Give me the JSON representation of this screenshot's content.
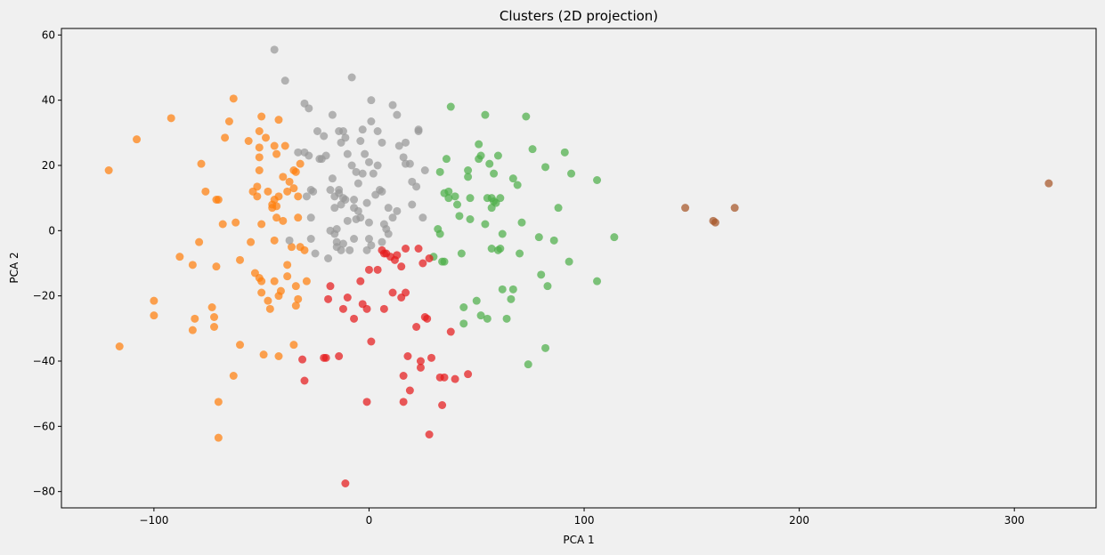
{
  "chart_data": {
    "type": "scatter",
    "title": "Clusters (2D projection)",
    "xlabel": "PCA 1",
    "ylabel": "PCA 2",
    "xlim": [
      -143,
      338
    ],
    "ylim": [
      -85,
      62
    ],
    "xticks": [
      -100,
      0,
      100,
      200,
      300
    ],
    "yticks": [
      -80,
      -60,
      -40,
      -20,
      0,
      20,
      40,
      60
    ],
    "grid": false,
    "legend": "none",
    "background": "#f0f0f0",
    "series": [
      {
        "color": "#ff7f0e",
        "points": [
          [
            -121,
            18.5
          ],
          [
            -108,
            28
          ],
          [
            -92,
            34.5
          ],
          [
            -116,
            -35.5
          ],
          [
            -100,
            -21.5
          ],
          [
            -100,
            -26
          ],
          [
            -88,
            -8
          ],
          [
            -82,
            -10.5
          ],
          [
            -81,
            -27
          ],
          [
            -82,
            -30.5
          ],
          [
            -79,
            -3.5
          ],
          [
            -78,
            20.5
          ],
          [
            -76,
            12
          ],
          [
            -73,
            -23.5
          ],
          [
            -72,
            -26.5
          ],
          [
            -72,
            -29.5
          ],
          [
            -71,
            9.5
          ],
          [
            -70,
            9.5
          ],
          [
            -71,
            -11
          ],
          [
            -70,
            -52.5
          ],
          [
            -70,
            -63.5
          ],
          [
            -68,
            2
          ],
          [
            -67,
            28.5
          ],
          [
            -65,
            33.5
          ],
          [
            -63,
            40.5
          ],
          [
            -62,
            2.5
          ],
          [
            -63,
            -44.5
          ],
          [
            -60,
            -9
          ],
          [
            -60,
            -35
          ],
          [
            -56,
            27.5
          ],
          [
            -55,
            -3.5
          ],
          [
            -54,
            12
          ],
          [
            -53,
            -13
          ],
          [
            -52,
            10.5
          ],
          [
            -52,
            13.5
          ],
          [
            -51,
            30.5
          ],
          [
            -51,
            25.5
          ],
          [
            -50,
            35
          ],
          [
            -51,
            22.5
          ],
          [
            -51,
            18.5
          ],
          [
            -51,
            -14.5
          ],
          [
            -50,
            2
          ],
          [
            -50,
            -15.5
          ],
          [
            -50,
            -19
          ],
          [
            -49,
            -38
          ],
          [
            -48,
            28.5
          ],
          [
            -47,
            12
          ],
          [
            -47,
            -21.5
          ],
          [
            -46,
            -24
          ],
          [
            -45,
            7
          ],
          [
            -45,
            8
          ],
          [
            -44,
            26
          ],
          [
            -43,
            23.5
          ],
          [
            -44,
            9.5
          ],
          [
            -44,
            -3
          ],
          [
            -44,
            -15.5
          ],
          [
            -43,
            4
          ],
          [
            -43,
            7.5
          ],
          [
            -42,
            10.5
          ],
          [
            -42,
            34
          ],
          [
            -42,
            -20
          ],
          [
            -42,
            -38.5
          ],
          [
            -41,
            -18.5
          ],
          [
            -40,
            3
          ],
          [
            -40,
            16.5
          ],
          [
            -39,
            26
          ],
          [
            -38,
            -10.5
          ],
          [
            -38,
            -14
          ],
          [
            -38,
            12
          ],
          [
            -37,
            15
          ],
          [
            -36,
            -5
          ],
          [
            -35,
            18.5
          ],
          [
            -35,
            13
          ],
          [
            -35,
            -35
          ],
          [
            -34,
            -17
          ],
          [
            -34,
            -23
          ],
          [
            -34,
            18
          ],
          [
            -33,
            10.5
          ],
          [
            -33,
            -21
          ],
          [
            -33,
            4
          ],
          [
            -32,
            20.5
          ],
          [
            -32,
            -5
          ],
          [
            -30,
            -6
          ],
          [
            -29,
            -15.5
          ]
        ]
      },
      {
        "color": "#999999",
        "points": [
          [
            -44,
            55.5
          ],
          [
            -39,
            46
          ],
          [
            -30,
            39
          ],
          [
            -28,
            37.5
          ],
          [
            -24,
            30.5
          ],
          [
            -23,
            22
          ],
          [
            -22,
            22
          ],
          [
            -21,
            29
          ],
          [
            -20,
            23
          ],
          [
            -19,
            -8.5
          ],
          [
            -18,
            12.5
          ],
          [
            -18,
            0
          ],
          [
            -17,
            16
          ],
          [
            -17,
            35.5
          ],
          [
            -16,
            10.5
          ],
          [
            -16,
            -1
          ],
          [
            -16,
            7
          ],
          [
            -15,
            -3.5
          ],
          [
            -15,
            -5
          ],
          [
            -15,
            0.5
          ],
          [
            -14,
            12.5
          ],
          [
            -14,
            11.5
          ],
          [
            -14,
            30.5
          ],
          [
            -13,
            27
          ],
          [
            -13,
            8
          ],
          [
            -13,
            -6
          ],
          [
            -12,
            10
          ],
          [
            -12,
            30.5
          ],
          [
            -12,
            -4
          ],
          [
            -11,
            9.5
          ],
          [
            -11,
            28.5
          ],
          [
            -10,
            23.5
          ],
          [
            -10,
            3
          ],
          [
            -9,
            -6
          ],
          [
            -8,
            47
          ],
          [
            -8,
            20
          ],
          [
            -7,
            7
          ],
          [
            -7,
            9.5
          ],
          [
            -7,
            -2.5
          ],
          [
            -6,
            3.5
          ],
          [
            -6,
            18
          ],
          [
            -5,
            6
          ],
          [
            -5,
            14.5
          ],
          [
            -4,
            4
          ],
          [
            -4,
            27.5
          ],
          [
            -3,
            17.5
          ],
          [
            -3,
            31
          ],
          [
            -2,
            23.5
          ],
          [
            -1,
            -6
          ],
          [
            0,
            2.5
          ],
          [
            -1,
            8.5
          ],
          [
            0,
            21
          ],
          [
            0,
            -2.5
          ],
          [
            1,
            33.5
          ],
          [
            1,
            40
          ],
          [
            1,
            -4.5
          ],
          [
            2,
            17.5
          ],
          [
            3,
            11
          ],
          [
            4,
            30.5
          ],
          [
            4,
            20
          ],
          [
            5,
            12.5
          ],
          [
            6,
            -3.5
          ],
          [
            6,
            12
          ],
          [
            6,
            27
          ],
          [
            7,
            2
          ],
          [
            8,
            0.5
          ],
          [
            9,
            7
          ],
          [
            9,
            -1
          ],
          [
            11,
            38.5
          ],
          [
            11,
            4
          ],
          [
            13,
            35.5
          ],
          [
            13,
            6
          ],
          [
            14,
            26
          ],
          [
            16,
            22.5
          ],
          [
            17,
            20.5
          ],
          [
            17,
            27
          ],
          [
            19,
            20.5
          ],
          [
            20,
            8
          ],
          [
            20,
            15
          ],
          [
            22,
            13.5
          ],
          [
            23,
            31
          ],
          [
            23,
            30.5
          ],
          [
            25,
            4
          ],
          [
            26,
            18.5
          ],
          [
            -37,
            -3
          ],
          [
            -30,
            24
          ],
          [
            -28,
            23
          ],
          [
            -27,
            -2.5
          ],
          [
            -26,
            12
          ],
          [
            -25,
            -7
          ],
          [
            -27,
            4
          ],
          [
            -27,
            12.5
          ],
          [
            -29,
            10.5
          ],
          [
            -33,
            24
          ]
        ]
      },
      {
        "color": "#4daf4a",
        "points": [
          [
            38,
            38
          ],
          [
            30,
            -8
          ],
          [
            32,
            0.5
          ],
          [
            33,
            -1
          ],
          [
            33,
            18
          ],
          [
            35,
            11.5
          ],
          [
            36,
            22
          ],
          [
            37,
            10
          ],
          [
            37,
            12
          ],
          [
            40,
            10.5
          ],
          [
            41,
            8
          ],
          [
            42,
            4.5
          ],
          [
            43,
            -7
          ],
          [
            44,
            -23.5
          ],
          [
            44,
            -28.5
          ],
          [
            46,
            18.5
          ],
          [
            46,
            16.5
          ],
          [
            47,
            10
          ],
          [
            47,
            3.5
          ],
          [
            50,
            -21.5
          ],
          [
            51,
            26.5
          ],
          [
            51,
            22
          ],
          [
            52,
            23
          ],
          [
            52,
            -26
          ],
          [
            54,
            2
          ],
          [
            54,
            35.5
          ],
          [
            55,
            10
          ],
          [
            55,
            -27
          ],
          [
            56,
            20.5
          ],
          [
            57,
            -5.5
          ],
          [
            57,
            7
          ],
          [
            57,
            10
          ],
          [
            58,
            17.5
          ],
          [
            58,
            9
          ],
          [
            59,
            8.5
          ],
          [
            60,
            23
          ],
          [
            60,
            -6
          ],
          [
            61,
            10
          ],
          [
            61,
            -5.5
          ],
          [
            62,
            -1
          ],
          [
            62,
            -18
          ],
          [
            64,
            -27
          ],
          [
            66,
            -21
          ],
          [
            67,
            -18
          ],
          [
            67,
            16
          ],
          [
            69,
            14
          ],
          [
            70,
            -7
          ],
          [
            71,
            2.5
          ],
          [
            73,
            35
          ],
          [
            74,
            -41
          ],
          [
            76,
            25
          ],
          [
            79,
            -2
          ],
          [
            80,
            -13.5
          ],
          [
            82,
            -36
          ],
          [
            82,
            19.5
          ],
          [
            83,
            -17
          ],
          [
            86,
            -3
          ],
          [
            88,
            7
          ],
          [
            91,
            24
          ],
          [
            93,
            -9.5
          ],
          [
            94,
            17.5
          ],
          [
            106,
            15.5
          ],
          [
            106,
            -15.5
          ],
          [
            114,
            -2
          ],
          [
            35,
            -9.5
          ],
          [
            34,
            -9.5
          ]
        ]
      },
      {
        "color": "#e41a1c",
        "points": [
          [
            -11,
            -77.5
          ],
          [
            -31,
            -39.5
          ],
          [
            -30,
            -46
          ],
          [
            -21,
            -39
          ],
          [
            -20,
            -39
          ],
          [
            -19,
            -21
          ],
          [
            -18,
            -17
          ],
          [
            -14,
            -38.5
          ],
          [
            -12,
            -24
          ],
          [
            -10,
            -20.5
          ],
          [
            -7,
            -27
          ],
          [
            -4,
            -15.5
          ],
          [
            -3,
            -22.5
          ],
          [
            -1,
            -52.5
          ],
          [
            -1,
            -24
          ],
          [
            0,
            -12
          ],
          [
            1,
            -34
          ],
          [
            4,
            -12
          ],
          [
            6,
            -6
          ],
          [
            7,
            -7
          ],
          [
            7,
            -24
          ],
          [
            8,
            -7
          ],
          [
            10,
            -8
          ],
          [
            11,
            -19
          ],
          [
            12,
            -9
          ],
          [
            13,
            -7.5
          ],
          [
            15,
            -11
          ],
          [
            15,
            -20.5
          ],
          [
            16,
            -44.5
          ],
          [
            16,
            -52.5
          ],
          [
            17,
            -5.5
          ],
          [
            17,
            -19
          ],
          [
            18,
            -38.5
          ],
          [
            19,
            -49
          ],
          [
            22,
            -29.5
          ],
          [
            23,
            -5.5
          ],
          [
            24,
            -42
          ],
          [
            24,
            -40
          ],
          [
            25,
            -10
          ],
          [
            26,
            -26.5
          ],
          [
            27,
            -27
          ],
          [
            28,
            -62.5
          ],
          [
            28,
            -8.5
          ],
          [
            29,
            -39
          ],
          [
            33,
            -45
          ],
          [
            34,
            -53.5
          ],
          [
            35,
            -45
          ],
          [
            38,
            -31
          ],
          [
            40,
            -45.5
          ],
          [
            46,
            -44
          ]
        ]
      },
      {
        "color": "#a65628",
        "points": [
          [
            147,
            7
          ],
          [
            160,
            3
          ],
          [
            161,
            2.5
          ],
          [
            170,
            7
          ],
          [
            316,
            14.5
          ]
        ]
      }
    ]
  }
}
